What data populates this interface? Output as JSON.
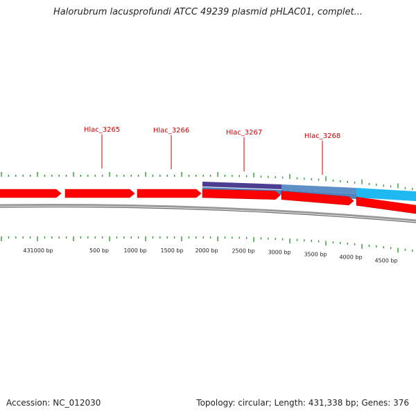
{
  "title": "Halorubrum lacusprofundi ATCC 49239 plasmid pHLAC01, complet...",
  "footer": {
    "accession": "Accession: NC_012030",
    "summary": "Topology: circular; Length: 431,338 bp; Genes: 376"
  },
  "colors": {
    "gene_arrow": "#ff0000",
    "label": "#cc0000",
    "tick": "#339933",
    "backbone": "#888888",
    "feature_dark": "#4b3d8f",
    "feature_mid": "#4f82bd",
    "feature_light": "#20b8f0"
  },
  "gene_labels": [
    "Hlac_3265",
    "Hlac_3266",
    "Hlac_3267",
    "Hlac_3268"
  ],
  "scale_labels": [
    "431000 bp",
    "500 bp",
    "1000 bp",
    "1500 bp",
    "2000 bp",
    "2500 bp",
    "3000 bp",
    "3500 bp",
    "4000 bp",
    "4500 bp"
  ]
}
